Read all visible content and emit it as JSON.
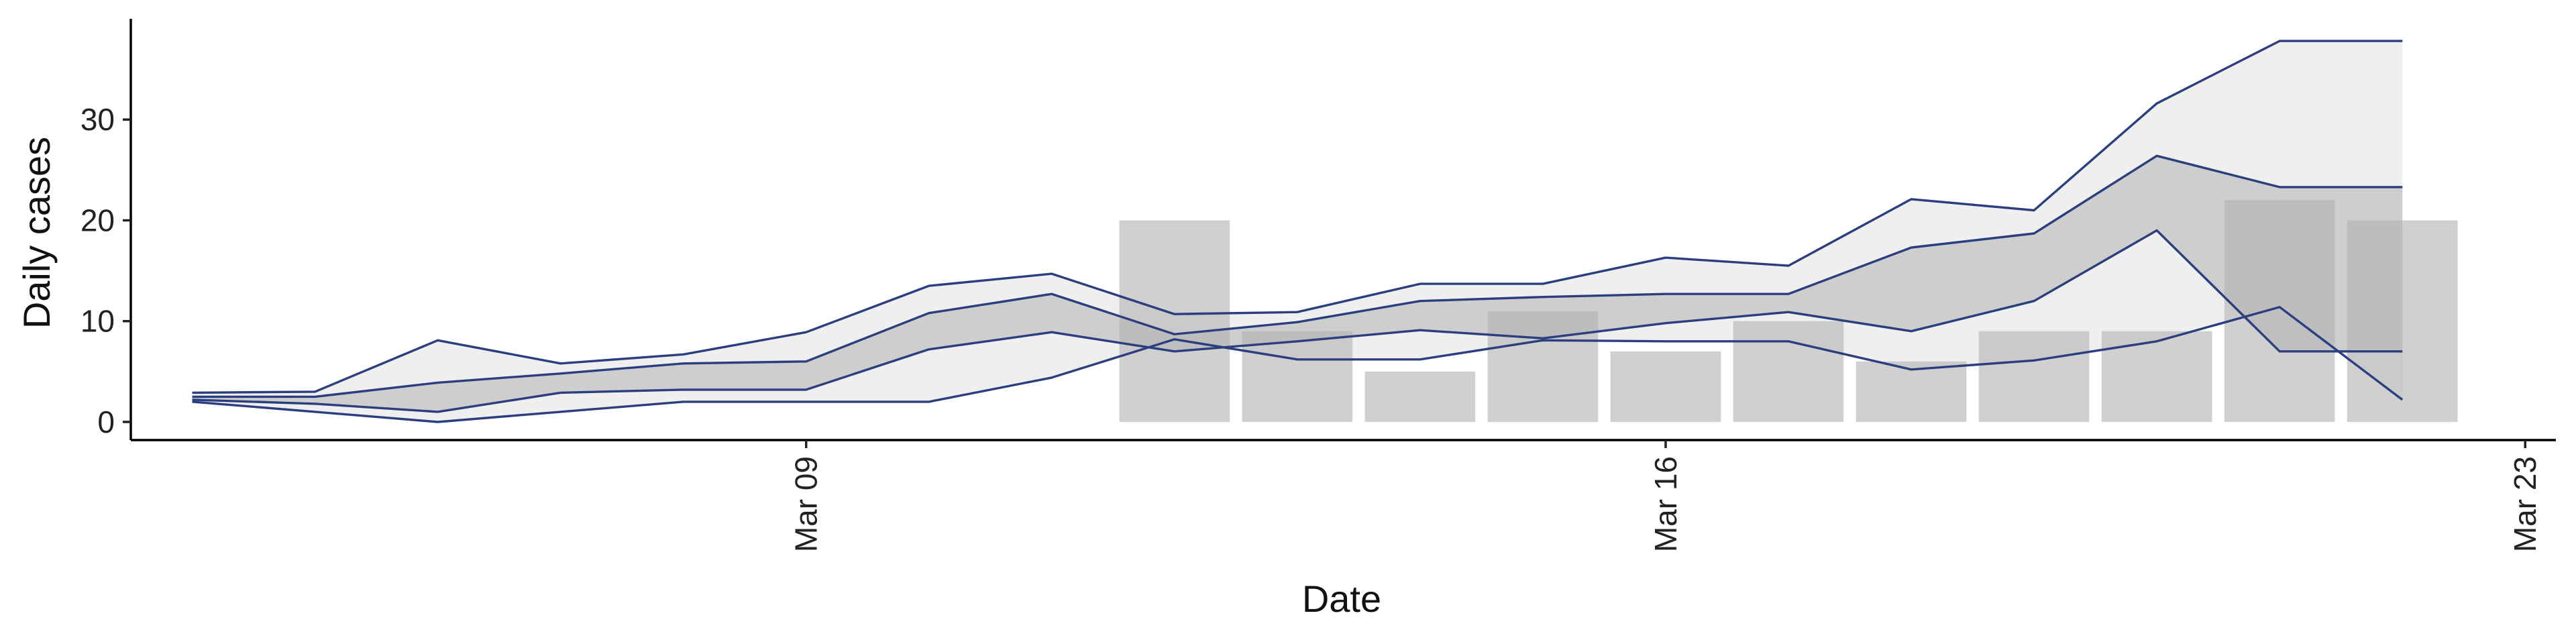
{
  "chart_data": {
    "type": "bar",
    "xlabel": "Date",
    "ylabel": "Daily cases",
    "x_ticks": [
      {
        "date": "2020-03-09",
        "label": "Mar 09"
      },
      {
        "date": "2020-03-16",
        "label": "Mar 16"
      },
      {
        "date": "2020-03-23",
        "label": "Mar 23"
      }
    ],
    "y_ticks": [
      0,
      10,
      20,
      30
    ],
    "xlim": [
      "2020-03-03T12:00",
      "2020-03-23T06:00"
    ],
    "ylim": [
      -1.8,
      40
    ],
    "grid": false,
    "legend": "none",
    "bars": {
      "dates": [
        "2020-03-12",
        "2020-03-13",
        "2020-03-14",
        "2020-03-15",
        "2020-03-16",
        "2020-03-17",
        "2020-03-18",
        "2020-03-19",
        "2020-03-20",
        "2020-03-21",
        "2020-03-22"
      ],
      "values": [
        20,
        9,
        5,
        11,
        7,
        10,
        6,
        9,
        9,
        22,
        20
      ],
      "color": "#b3b3b3"
    },
    "bands": {
      "dates": [
        "2020-03-04",
        "2020-03-05",
        "2020-03-06",
        "2020-03-07",
        "2020-03-08",
        "2020-03-09",
        "2020-03-10",
        "2020-03-11",
        "2020-03-12",
        "2020-03-13",
        "2020-03-14",
        "2020-03-15",
        "2020-03-16",
        "2020-03-17",
        "2020-03-18",
        "2020-03-19",
        "2020-03-20",
        "2020-03-21",
        "2020-03-22"
      ],
      "outer": {
        "lower": [
          2.0,
          1.0,
          0.0,
          1.0,
          2.0,
          2.0,
          2.0,
          4.4,
          8.2,
          6.2,
          6.2,
          8.1,
          8.0,
          8.0,
          5.2,
          6.1,
          8.0,
          11.4,
          2.2
        ],
        "upper": [
          2.9,
          3.0,
          8.1,
          5.8,
          6.7,
          8.9,
          13.5,
          14.7,
          10.7,
          10.9,
          13.7,
          13.7,
          16.3,
          15.5,
          22.1,
          21.0,
          31.6,
          37.8,
          37.8
        ],
        "color": "#ececec"
      },
      "inner": {
        "lower": [
          2.2,
          1.8,
          1.0,
          2.9,
          3.2,
          3.2,
          7.2,
          8.9,
          7.0,
          8.0,
          9.1,
          8.3,
          9.8,
          10.9,
          9.0,
          12.0,
          19.0,
          7.0,
          7.0
        ],
        "upper": [
          2.5,
          2.5,
          3.9,
          4.8,
          5.8,
          6.0,
          10.8,
          12.7,
          8.7,
          9.9,
          12.0,
          12.4,
          12.7,
          12.7,
          17.3,
          18.7,
          26.4,
          23.3,
          23.3
        ],
        "color": "#c6c6c6"
      },
      "line_color": "#2b3f7e"
    }
  }
}
